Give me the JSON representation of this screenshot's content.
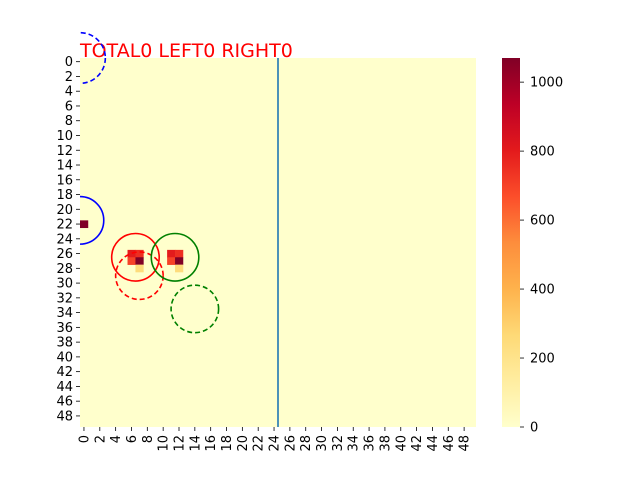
{
  "chart_data": {
    "type": "heatmap",
    "title": "TOTAL0  LEFT0 RIGHT0",
    "title_color": "#ff0000",
    "grid_size": [
      50,
      50
    ],
    "x_tick_labels": [
      "0",
      "2",
      "4",
      "6",
      "8",
      "10",
      "12",
      "14",
      "16",
      "18",
      "20",
      "22",
      "24",
      "26",
      "28",
      "30",
      "32",
      "34",
      "36",
      "38",
      "40",
      "42",
      "44",
      "46",
      "48"
    ],
    "y_tick_labels": [
      "0",
      "2",
      "4",
      "6",
      "8",
      "10",
      "12",
      "14",
      "16",
      "18",
      "20",
      "22",
      "24",
      "26",
      "28",
      "30",
      "32",
      "34",
      "36",
      "38",
      "40",
      "42",
      "44",
      "46",
      "48"
    ],
    "colorbar": {
      "range": [
        0,
        1070
      ],
      "ticks": [
        "0",
        "200",
        "400",
        "600",
        "800",
        "1000"
      ],
      "tick_values": [
        0,
        200,
        400,
        600,
        800,
        1000
      ],
      "colormap": "YlOrRd"
    },
    "background_value": 0,
    "cells": [
      {
        "x": 0,
        "y": 22,
        "value": 1070
      },
      {
        "x": 6,
        "y": 26,
        "value": 800
      },
      {
        "x": 7,
        "y": 26,
        "value": 750
      },
      {
        "x": 6,
        "y": 27,
        "value": 700
      },
      {
        "x": 7,
        "y": 27,
        "value": 1070
      },
      {
        "x": 7,
        "y": 28,
        "value": 250
      },
      {
        "x": 11,
        "y": 26,
        "value": 800
      },
      {
        "x": 12,
        "y": 26,
        "value": 750
      },
      {
        "x": 11,
        "y": 27,
        "value": 700
      },
      {
        "x": 12,
        "y": 27,
        "value": 1070
      },
      {
        "x": 12,
        "y": 28,
        "value": 250
      }
    ],
    "vertical_line": {
      "x": 25,
      "color": "#1f77b4"
    },
    "circles": [
      {
        "cx": 0,
        "cy": 0,
        "r": 3.2,
        "color": "#0000ff",
        "style": "dashed"
      },
      {
        "cx": 0,
        "cy": 22,
        "r": 3,
        "color": "#0000ff",
        "style": "solid"
      },
      {
        "cx": 7,
        "cy": 27,
        "r": 3,
        "color": "#ff0000",
        "style": "solid"
      },
      {
        "cx": 7.5,
        "cy": 29.5,
        "r": 3,
        "color": "#ff0000",
        "style": "dashed"
      },
      {
        "cx": 12,
        "cy": 27,
        "r": 3,
        "color": "#008000",
        "style": "solid"
      },
      {
        "cx": 14.5,
        "cy": 34,
        "r": 3,
        "color": "#008000",
        "style": "dashed"
      }
    ]
  }
}
